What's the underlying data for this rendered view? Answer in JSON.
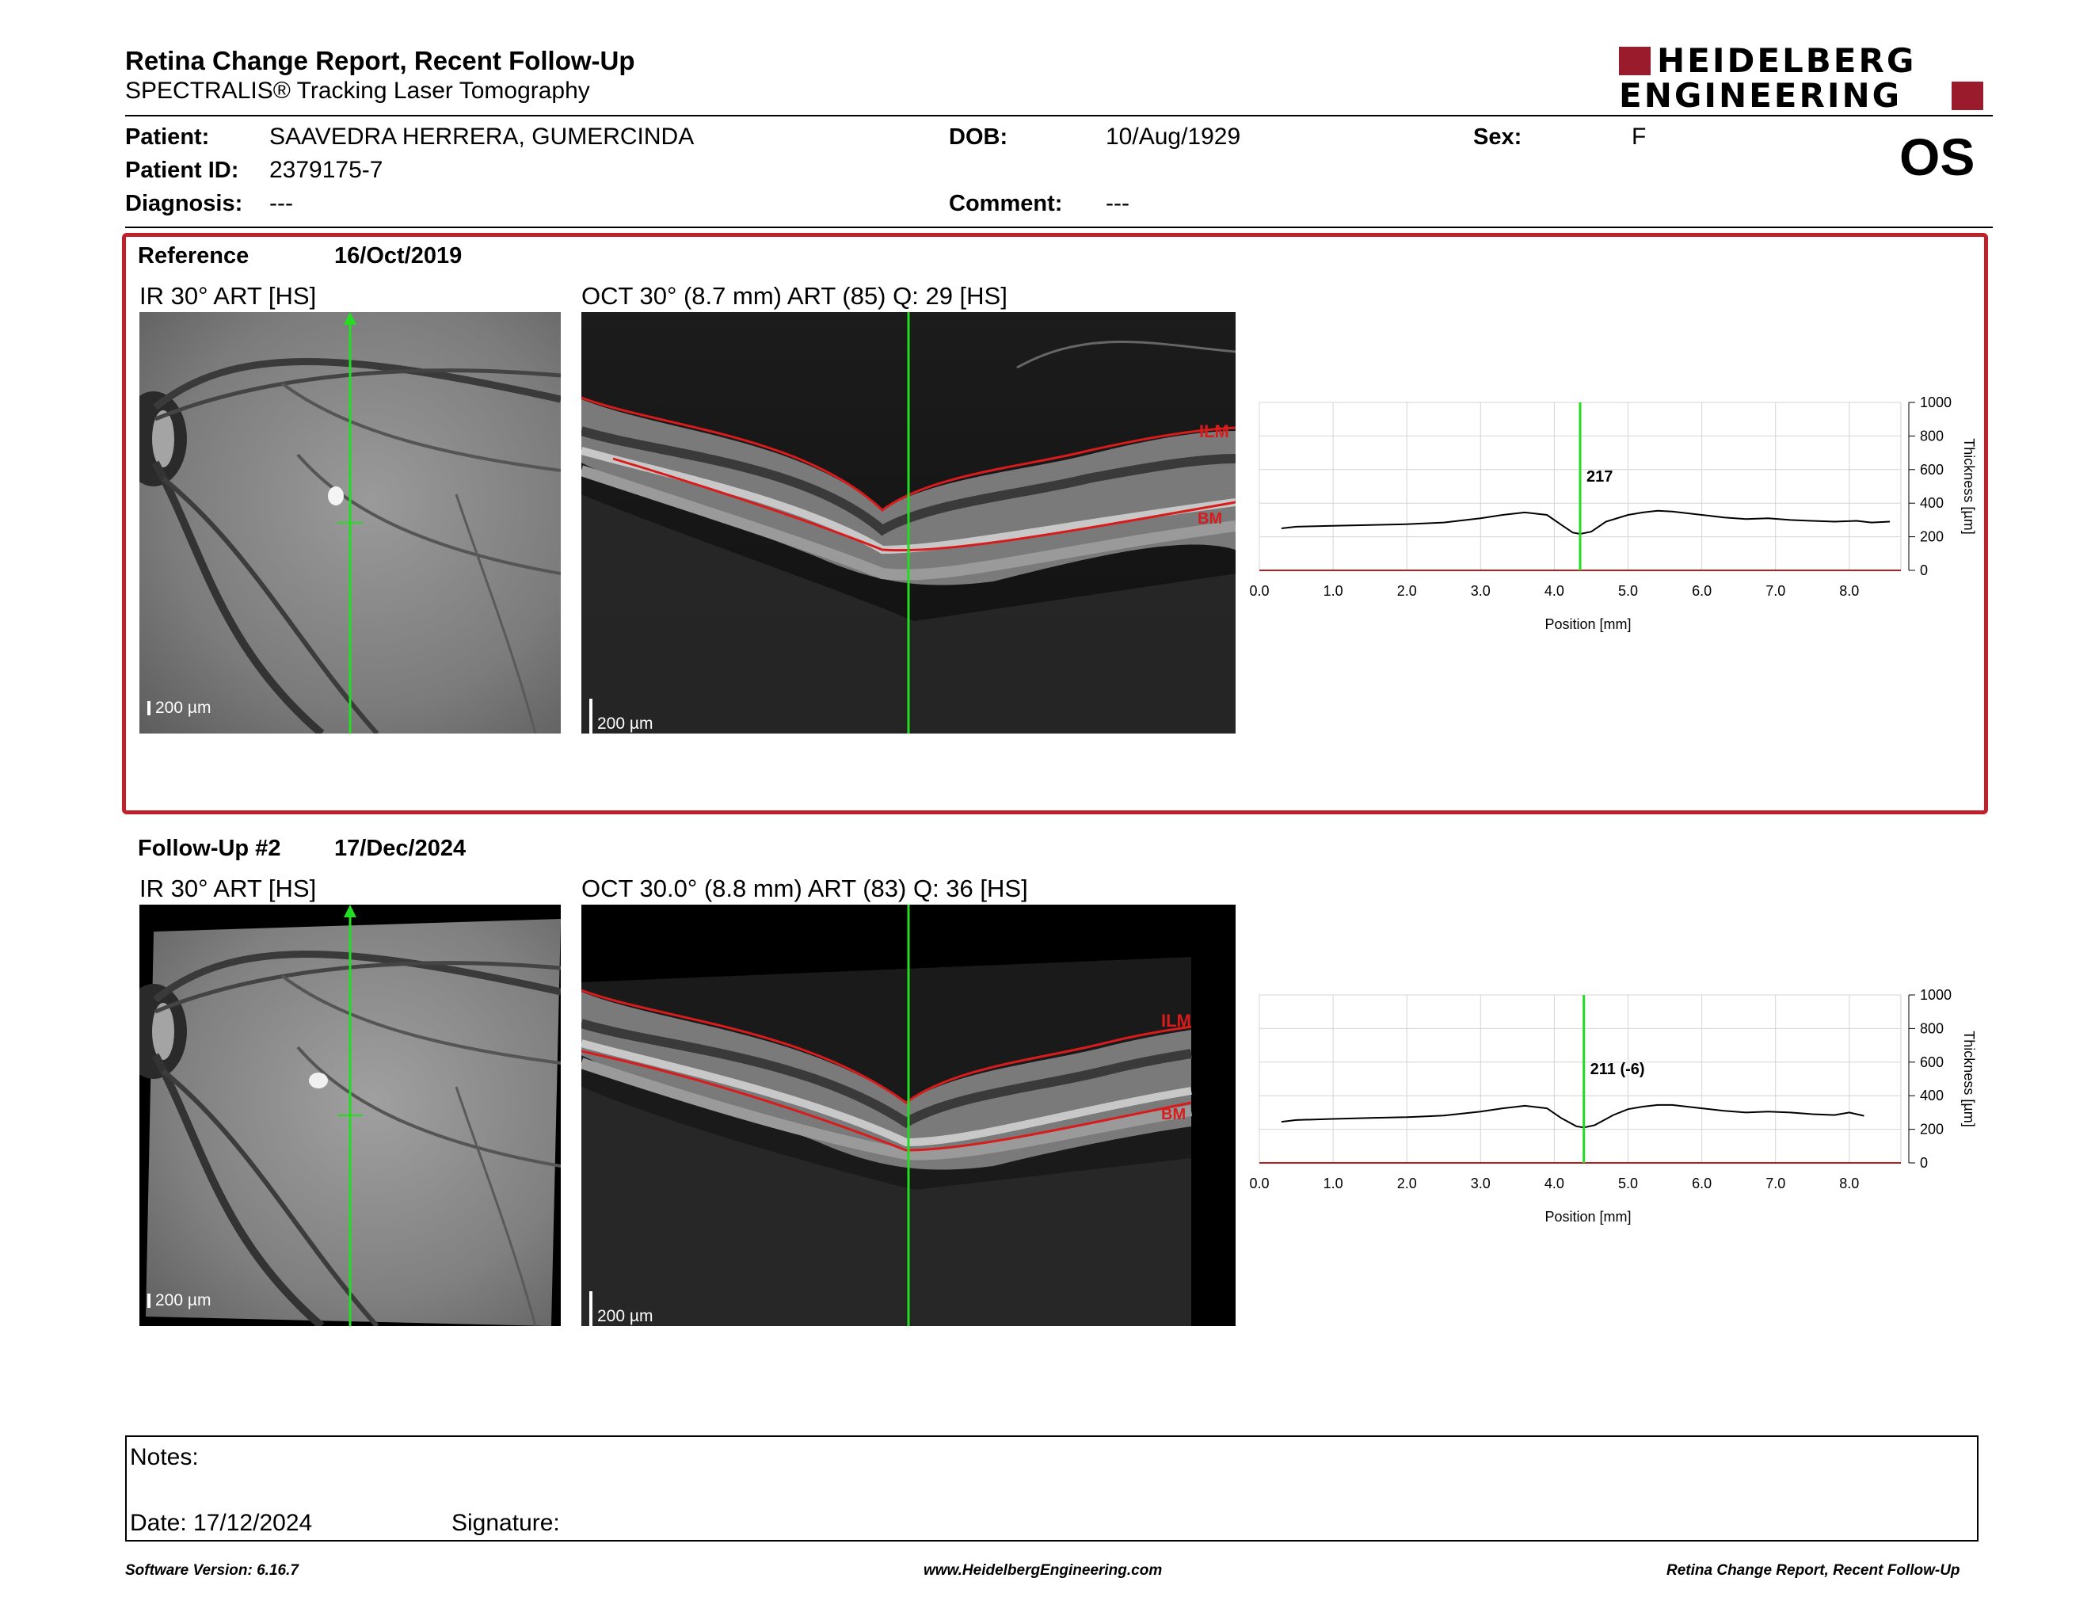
{
  "header": {
    "title": "Retina Change Report, Recent Follow-Up",
    "subtitle": "SPECTRALIS® Tracking Laser Tomography",
    "logo_line1": "HEIDELBERG",
    "logo_line2": "ENGINEERING",
    "eye": "OS"
  },
  "patient": {
    "name_label": "Patient:",
    "name": "SAAVEDRA HERRERA, GUMERCINDA",
    "id_label": "Patient ID:",
    "id": "2379175-7",
    "diagnosis_label": "Diagnosis:",
    "diagnosis": "---",
    "dob_label": "DOB:",
    "dob": "10/Aug/1929",
    "comment_label": "Comment:",
    "comment": "---",
    "sex_label": "Sex:",
    "sex": "F"
  },
  "reference": {
    "label": "Reference",
    "date": "16/Oct/2019",
    "ir_title": "IR 30° ART [HS]",
    "oct_title": "OCT 30° (8.7 mm) ART (85) Q: 29 [HS]",
    "ir_scale": "200 µm",
    "oct_scale": "200 µm",
    "ilm_label": "ILM",
    "bm_label": "BM"
  },
  "followup": {
    "label": "Follow-Up #2",
    "date": "17/Dec/2024",
    "ir_title": "IR 30° ART [HS]",
    "oct_title": "OCT 30.0° (8.8 mm) ART (83) Q: 36 [HS]",
    "ir_scale": "200 µm",
    "oct_scale": "200 µm",
    "ilm_label": "ILM",
    "bm_label": "BM"
  },
  "chart_data": [
    {
      "type": "line",
      "xlabel": "Position [mm]",
      "ylabel": "Thickness [µm]",
      "xlim": [
        0,
        8.7
      ],
      "ylim": [
        0,
        1000
      ],
      "x_ticks": [
        "0.0",
        "1.0",
        "2.0",
        "3.0",
        "4.0",
        "5.0",
        "6.0",
        "7.0",
        "8.0"
      ],
      "y_ticks": [
        "0",
        "200",
        "400",
        "600",
        "800",
        "1000"
      ],
      "grid": true,
      "cursor_x": 4.35,
      "cursor_label": "217",
      "series": [
        {
          "x": [
            0.3,
            0.5,
            1.0,
            1.5,
            2.0,
            2.5,
            3.0,
            3.3,
            3.6,
            3.9,
            4.1,
            4.25,
            4.35,
            4.5,
            4.7,
            5.0,
            5.2,
            5.4,
            5.6,
            5.8,
            6.0,
            6.3,
            6.6,
            6.9,
            7.2,
            7.5,
            7.8,
            8.1,
            8.3,
            8.55
          ],
          "y": [
            250,
            260,
            265,
            270,
            275,
            285,
            310,
            330,
            345,
            330,
            270,
            225,
            217,
            230,
            290,
            330,
            345,
            355,
            350,
            340,
            330,
            315,
            305,
            310,
            300,
            295,
            290,
            295,
            285,
            290
          ]
        }
      ]
    },
    {
      "type": "line",
      "xlabel": "Position [mm]",
      "ylabel": "Thickness [µm]",
      "xlim": [
        0,
        8.7
      ],
      "ylim": [
        0,
        1000
      ],
      "x_ticks": [
        "0.0",
        "1.0",
        "2.0",
        "3.0",
        "4.0",
        "5.0",
        "6.0",
        "7.0",
        "8.0"
      ],
      "y_ticks": [
        "0",
        "200",
        "400",
        "600",
        "800",
        "1000"
      ],
      "grid": true,
      "cursor_x": 4.4,
      "cursor_label": "211 (-6)",
      "series": [
        {
          "x": [
            0.3,
            0.5,
            1.0,
            1.5,
            2.0,
            2.5,
            3.0,
            3.3,
            3.6,
            3.9,
            4.1,
            4.3,
            4.4,
            4.55,
            4.8,
            5.0,
            5.2,
            5.4,
            5.6,
            5.8,
            6.0,
            6.3,
            6.6,
            6.9,
            7.2,
            7.5,
            7.8,
            8.0,
            8.2
          ],
          "y": [
            245,
            255,
            262,
            268,
            272,
            282,
            305,
            325,
            340,
            325,
            265,
            218,
            211,
            225,
            285,
            320,
            335,
            345,
            345,
            335,
            325,
            310,
            300,
            305,
            300,
            290,
            285,
            300,
            280
          ]
        }
      ]
    }
  ],
  "notes": {
    "notes_label": "Notes:",
    "date_label": "Date: 17/12/2024",
    "signature_label": "Signature:"
  },
  "footer": {
    "left": "Software Version: 6.16.7",
    "center": "www.HeidelbergEngineering.com",
    "right": "Retina Change Report, Recent Follow-Up"
  }
}
